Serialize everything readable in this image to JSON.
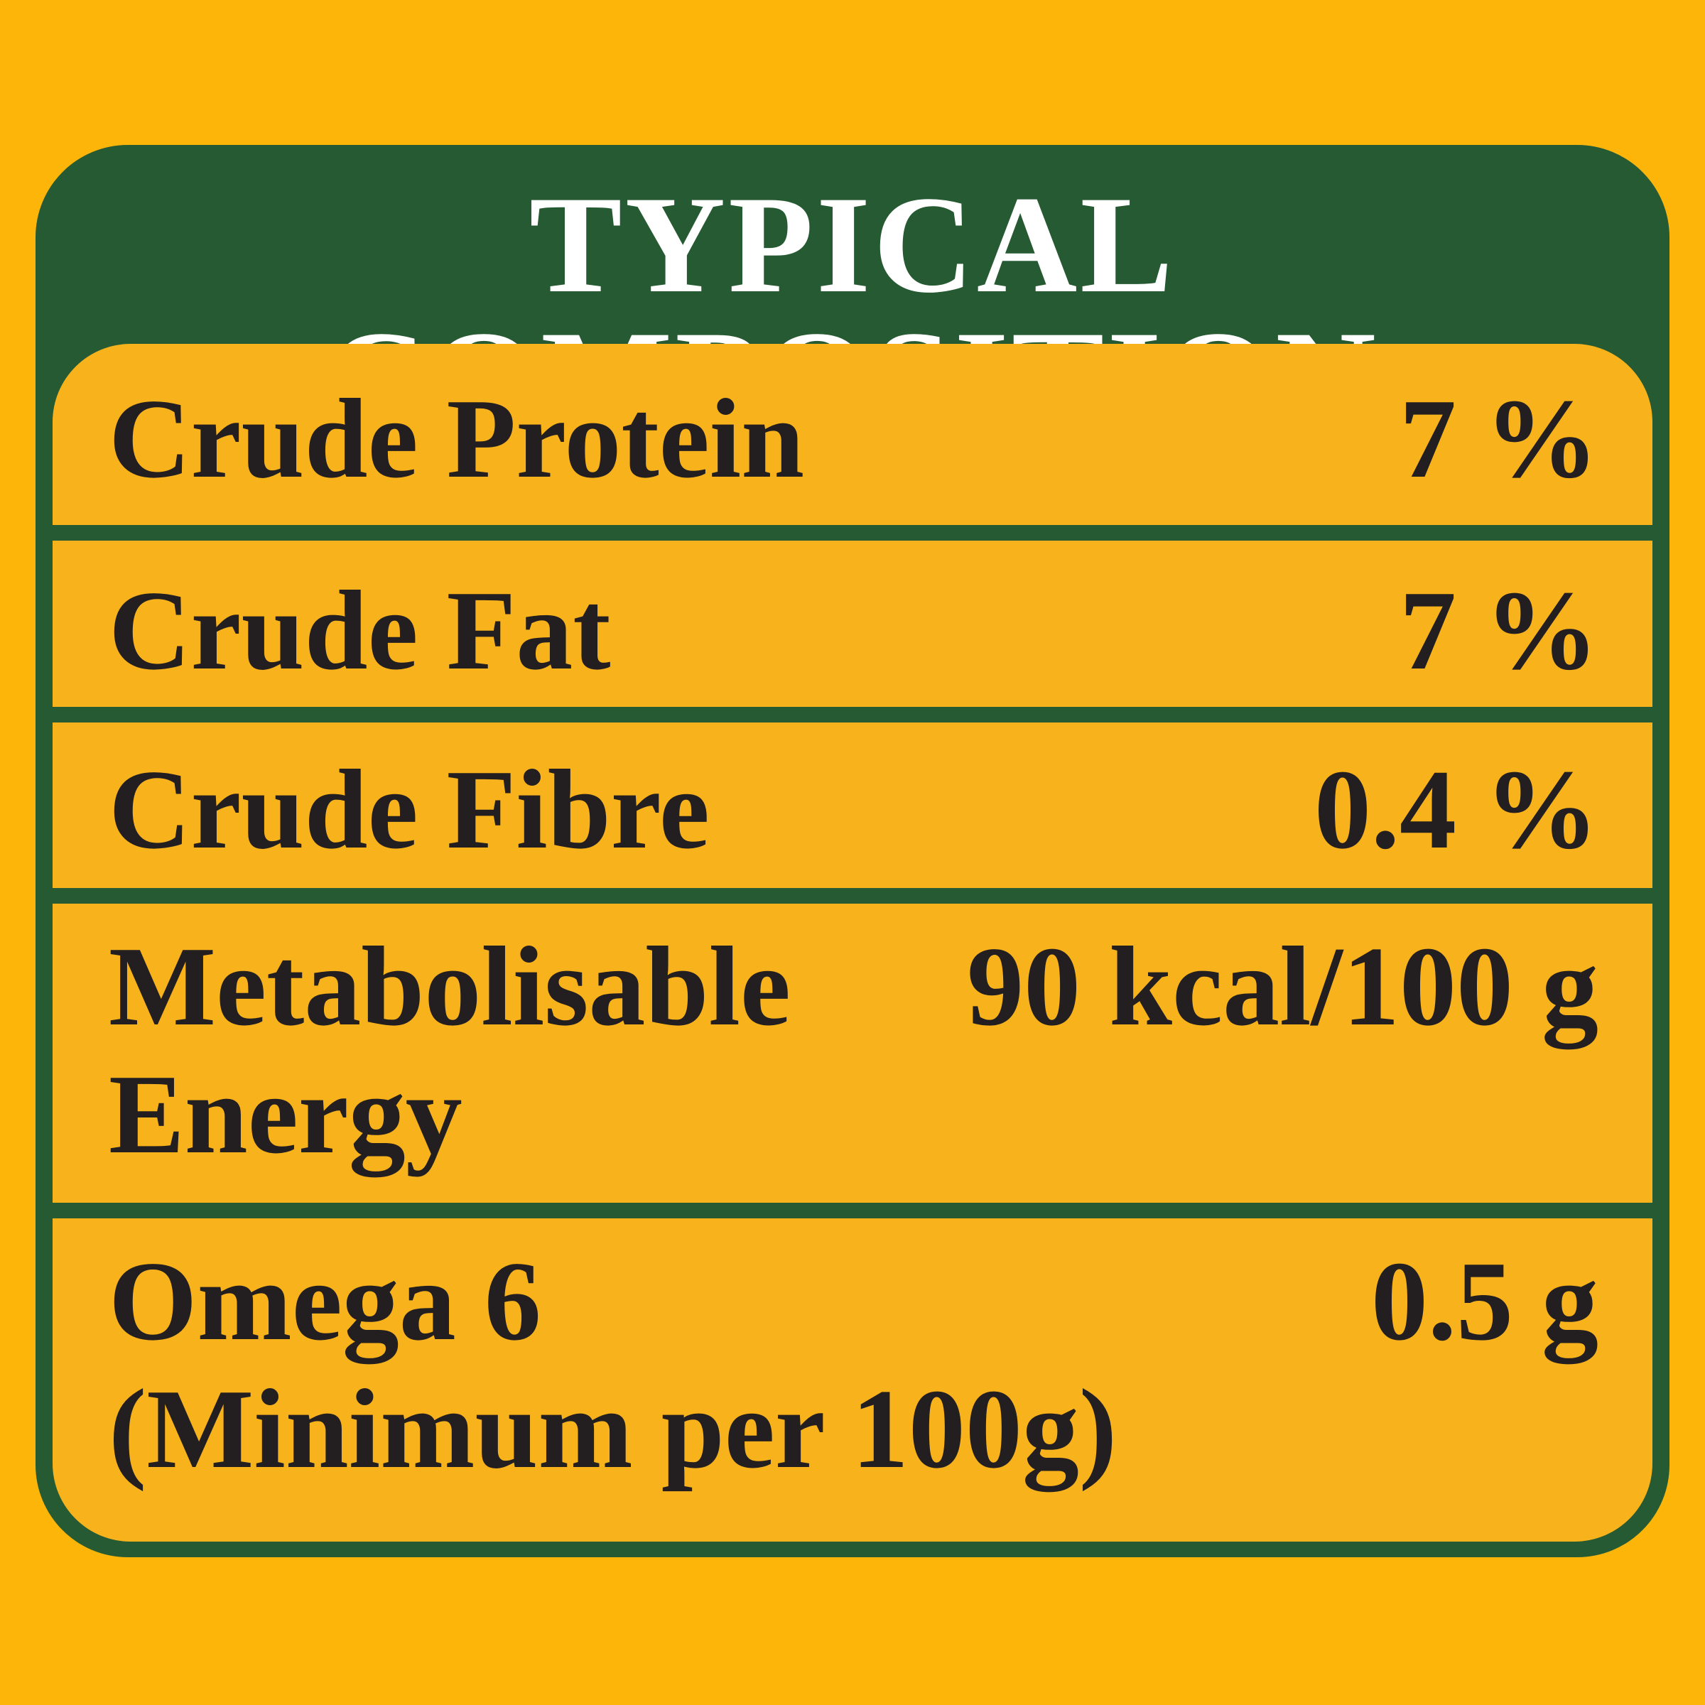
{
  "title": "TYPICAL COMPOSITION",
  "rows": [
    {
      "label": [
        "Crude Protein"
      ],
      "value": "7 %"
    },
    {
      "label": [
        "Crude Fat"
      ],
      "value": "7 %"
    },
    {
      "label": [
        "Crude Fibre"
      ],
      "value": "0.4 %"
    },
    {
      "label": [
        "Metabolisable",
        "Energy"
      ],
      "value": "90 kcal/100 g"
    },
    {
      "label": [
        "Omega 6",
        "(Minimum per 100g)"
      ],
      "value": "0.5 g"
    }
  ]
}
